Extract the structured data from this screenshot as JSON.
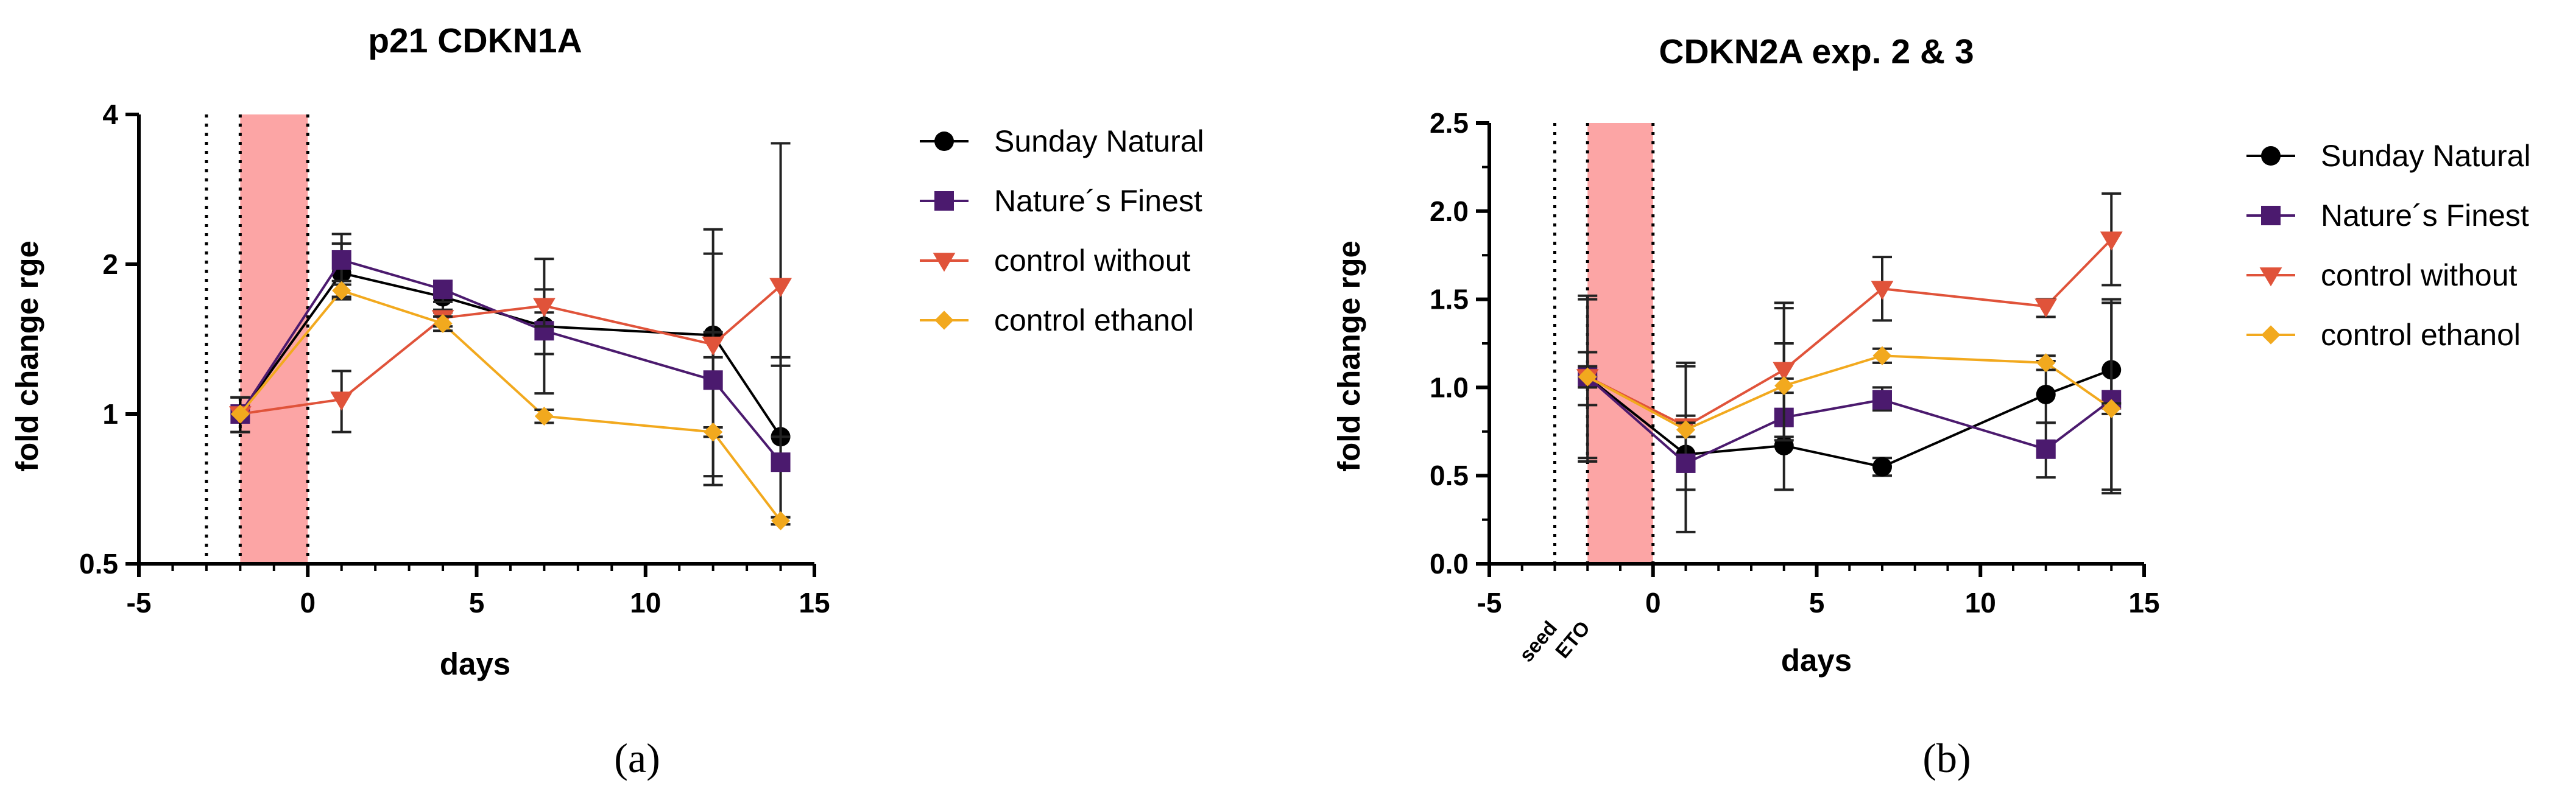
{
  "chart_data": [
    {
      "type": "line",
      "panel": "(a)",
      "title": "p21 CDKN1A",
      "xlabel": "days",
      "ylabel": "fold change rge",
      "yscale": "log2",
      "xlim": [
        -5,
        15
      ],
      "ylim": [
        0.5,
        4
      ],
      "xticks": [
        -5,
        0,
        5,
        10,
        15
      ],
      "yticks": [
        0.5,
        1,
        2,
        4
      ],
      "ytick_labels": [
        "0.5",
        "1",
        "2",
        "4"
      ],
      "vlines": [
        -3,
        -2,
        0
      ],
      "shade": [
        -2,
        0
      ],
      "shade_color": "#fca5a5",
      "legend": "right",
      "series": [
        {
          "name": "Sunday Natural",
          "color": "#000000",
          "marker": "circle",
          "x": [
            -2,
            1,
            4,
            7,
            12,
            14
          ],
          "y": [
            1.0,
            1.92,
            1.72,
            1.5,
            1.44,
            0.9
          ],
          "err_lo": [
            0.92,
            1.7,
            1.6,
            1.1,
            0.72,
            0.6
          ],
          "err_hi": [
            1.08,
            2.2,
            1.82,
            2.05,
            2.35,
            1.3
          ]
        },
        {
          "name": "Nature´s Finest",
          "color": "#4b1a6e",
          "marker": "square",
          "x": [
            -2,
            1,
            4,
            7,
            12,
            14
          ],
          "y": [
            1.0,
            2.04,
            1.78,
            1.47,
            1.17,
            0.8
          ],
          "err_lo": [
            0.92,
            1.85,
            1.68,
            1.32,
            0.75,
            0.62
          ],
          "err_hi": [
            1.08,
            2.3,
            1.85,
            1.6,
            2.1,
            1.25
          ]
        },
        {
          "name": "control without",
          "color": "#e0533a",
          "marker": "triangle-down",
          "x": [
            -2,
            1,
            4,
            7,
            12,
            14
          ],
          "y": [
            1.0,
            1.07,
            1.56,
            1.65,
            1.38,
            1.81
          ],
          "err_lo": [
            0.92,
            0.92,
            1.5,
            1.5,
            1.3,
            0.9
          ],
          "err_hi": [
            1.08,
            1.22,
            1.62,
            1.78,
            1.46,
            3.5
          ]
        },
        {
          "name": "control ethanol",
          "color": "#f2a91e",
          "marker": "diamond",
          "x": [
            -2,
            1,
            4,
            7,
            12,
            14
          ],
          "y": [
            1.0,
            1.77,
            1.52,
            0.99,
            0.92,
            0.61
          ],
          "err_lo": [
            0.92,
            1.72,
            1.47,
            0.96,
            0.9,
            0.6
          ],
          "err_hi": [
            1.08,
            1.82,
            1.57,
            1.02,
            0.94,
            0.62
          ]
        }
      ]
    },
    {
      "type": "line",
      "panel": "(b)",
      "title": "CDKN2A exp. 2 & 3",
      "xlabel": "days",
      "ylabel": "fold change rge",
      "yscale": "linear",
      "xlim": [
        -5,
        15
      ],
      "ylim": [
        0,
        2.5
      ],
      "xticks": [
        -5,
        0,
        5,
        10,
        15
      ],
      "yticks": [
        0,
        0.5,
        1,
        1.5,
        2,
        2.5
      ],
      "ytick_labels": [
        "0.0",
        "0.5",
        "1.0",
        "1.5",
        "2.0",
        "2.5"
      ],
      "vlines": [
        -3,
        -2,
        0
      ],
      "shade": [
        -2,
        0
      ],
      "shade_color": "#fca5a5",
      "annotations": [
        "seed",
        "ETO"
      ],
      "legend": "right",
      "series": [
        {
          "name": "Sunday Natural",
          "color": "#000000",
          "marker": "circle",
          "x": [
            -2,
            1,
            4,
            7,
            12,
            14
          ],
          "y": [
            1.06,
            0.62,
            0.67,
            0.55,
            0.96,
            1.1
          ],
          "err_lo": [
            0.58,
            0.42,
            0.42,
            0.5,
            0.8,
            0.42
          ],
          "err_hi": [
            1.52,
            1.12,
            1.25,
            0.6,
            1.15,
            1.48
          ]
        },
        {
          "name": "Nature´s Finest",
          "color": "#4b1a6e",
          "marker": "square",
          "x": [
            -2,
            1,
            4,
            7,
            12,
            14
          ],
          "y": [
            1.06,
            0.57,
            0.83,
            0.93,
            0.65,
            0.93
          ],
          "err_lo": [
            0.6,
            0.18,
            0.7,
            0.87,
            0.49,
            0.4
          ],
          "err_hi": [
            1.5,
            1.14,
            1.45,
            1.0,
            0.8,
            1.5
          ]
        },
        {
          "name": "control without",
          "color": "#e0533a",
          "marker": "triangle-down",
          "x": [
            -2,
            1,
            4,
            7,
            12,
            14
          ],
          "y": [
            1.06,
            0.78,
            1.1,
            1.56,
            1.46,
            1.84
          ],
          "err_lo": [
            0.9,
            0.72,
            0.72,
            1.38,
            1.4,
            1.58
          ],
          "err_hi": [
            1.2,
            0.84,
            1.48,
            1.74,
            1.5,
            2.1
          ]
        },
        {
          "name": "control ethanol",
          "color": "#f2a91e",
          "marker": "diamond",
          "x": [
            -2,
            1,
            4,
            7,
            12,
            14
          ],
          "y": [
            1.06,
            0.76,
            1.01,
            1.18,
            1.14,
            0.88
          ],
          "err_lo": [
            1.0,
            0.72,
            0.97,
            1.14,
            1.1,
            0.85
          ],
          "err_hi": [
            1.12,
            0.8,
            1.05,
            1.22,
            1.18,
            0.91
          ]
        }
      ]
    }
  ]
}
